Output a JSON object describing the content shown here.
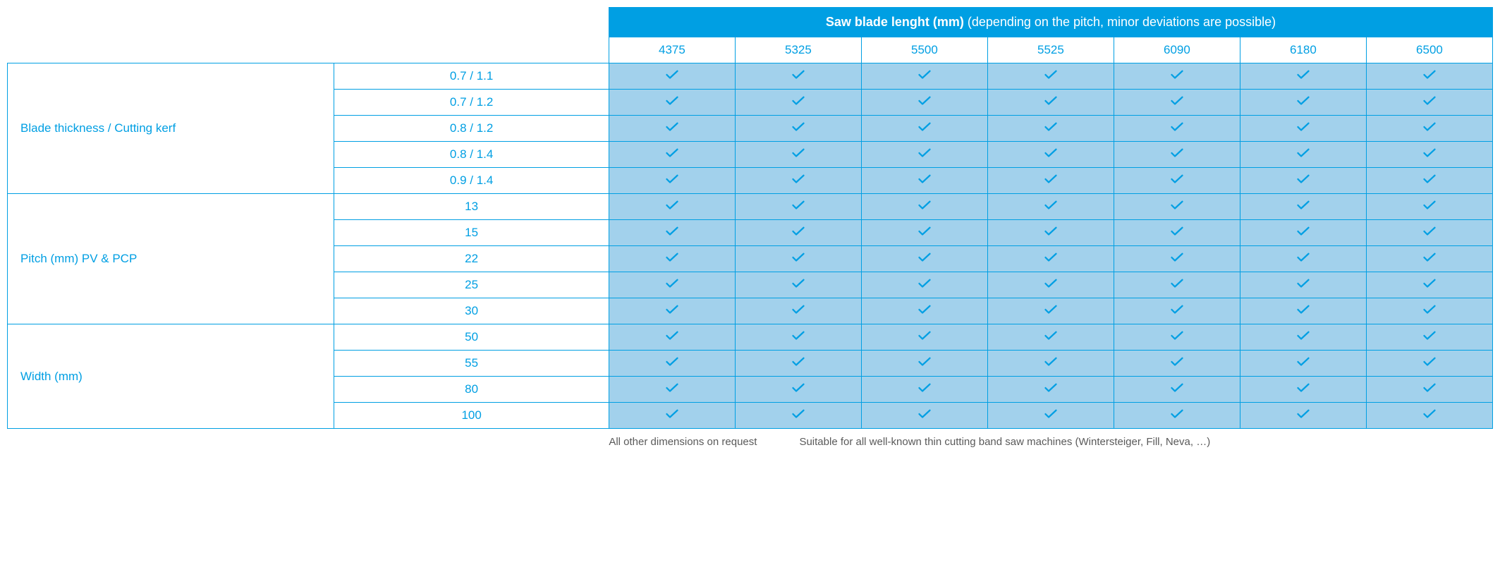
{
  "colors": {
    "brand_blue": "#009fe3",
    "light_blue": "#a2d1ec",
    "footer_grey": "#5a5a5a"
  },
  "header": {
    "title_bold": "Saw blade lenght (mm)",
    "title_rest": " (depending on the pitch, minor deviations are possible)"
  },
  "lengths": [
    "4375",
    "5325",
    "5500",
    "5525",
    "6090",
    "6180",
    "6500"
  ],
  "groups": [
    {
      "label": "Blade thickness / Cutting kerf",
      "items": [
        {
          "label": "0.7 / 1.1",
          "checks": [
            true,
            true,
            true,
            true,
            true,
            true,
            true
          ]
        },
        {
          "label": "0.7 / 1.2",
          "checks": [
            true,
            true,
            true,
            true,
            true,
            true,
            true
          ]
        },
        {
          "label": "0.8 / 1.2",
          "checks": [
            true,
            true,
            true,
            true,
            true,
            true,
            true
          ]
        },
        {
          "label": "0.8 / 1.4",
          "checks": [
            true,
            true,
            true,
            true,
            true,
            true,
            true
          ]
        },
        {
          "label": "0.9 / 1.4",
          "checks": [
            true,
            true,
            true,
            true,
            true,
            true,
            true
          ]
        }
      ]
    },
    {
      "label": "Pitch (mm) PV & PCP",
      "items": [
        {
          "label": "13",
          "checks": [
            true,
            true,
            true,
            true,
            true,
            true,
            true
          ]
        },
        {
          "label": "15",
          "checks": [
            true,
            true,
            true,
            true,
            true,
            true,
            true
          ]
        },
        {
          "label": "22",
          "checks": [
            true,
            true,
            true,
            true,
            true,
            true,
            true
          ]
        },
        {
          "label": "25",
          "checks": [
            true,
            true,
            true,
            true,
            true,
            true,
            true
          ]
        },
        {
          "label": "30",
          "checks": [
            true,
            true,
            true,
            true,
            true,
            true,
            true
          ]
        }
      ]
    },
    {
      "label": "Width (mm)",
      "items": [
        {
          "label": "50",
          "checks": [
            true,
            true,
            true,
            true,
            true,
            true,
            true
          ]
        },
        {
          "label": "55",
          "checks": [
            true,
            true,
            true,
            true,
            true,
            true,
            true
          ]
        },
        {
          "label": "80",
          "checks": [
            true,
            true,
            true,
            true,
            true,
            true,
            true
          ]
        },
        {
          "label": "100",
          "checks": [
            true,
            true,
            true,
            true,
            true,
            true,
            true
          ]
        }
      ]
    }
  ],
  "footer": {
    "note1": "All other dimensions on request",
    "note2": "Suitable for all well-known thin cutting band saw machines (Wintersteiger, Fill, Neva, …)"
  }
}
